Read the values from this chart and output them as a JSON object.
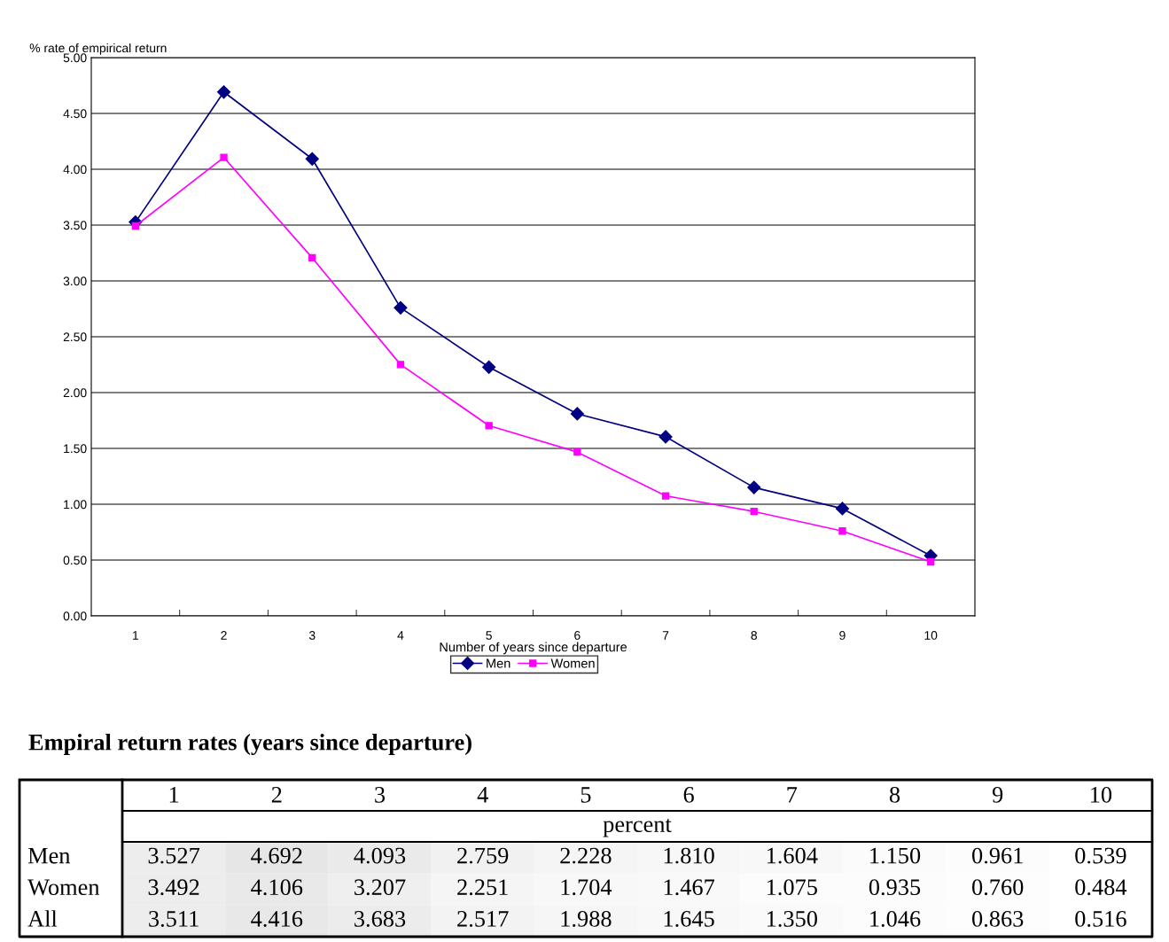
{
  "chart_data": [
    {
      "type": "line",
      "ylabel": "% rate of empirical return",
      "xlabel": "Number of years since departure",
      "categories": [
        "1",
        "2",
        "3",
        "4",
        "5",
        "6",
        "7",
        "8",
        "9",
        "10"
      ],
      "series": [
        {
          "name": "Men",
          "color": "#000080",
          "marker": "diamond",
          "values": [
            3.527,
            4.692,
            4.093,
            2.759,
            2.228,
            1.81,
            1.604,
            1.15,
            0.961,
            0.539
          ]
        },
        {
          "name": "Women",
          "color": "#ff00ff",
          "marker": "square",
          "values": [
            3.492,
            4.106,
            3.207,
            2.251,
            1.704,
            1.467,
            1.075,
            0.935,
            0.76,
            0.484
          ]
        }
      ],
      "ylim": [
        0,
        5
      ],
      "yticks": [
        {
          "value": 0,
          "label": "0.00"
        },
        {
          "value": 0.5,
          "label": "0.50"
        },
        {
          "value": 1,
          "label": "1.00"
        },
        {
          "value": 1.5,
          "label": "1.50"
        },
        {
          "value": 2,
          "label": "2.00"
        },
        {
          "value": 2.5,
          "label": "2.50"
        },
        {
          "value": 3,
          "label": "3.00"
        },
        {
          "value": 3.5,
          "label": "3.50"
        },
        {
          "value": 4,
          "label": "4.00"
        },
        {
          "value": 4.5,
          "label": "4.50"
        },
        {
          "value": 5,
          "label": "5.00"
        }
      ],
      "grid": "y",
      "legend": "bottom",
      "line_style": "solid"
    },
    {
      "type": "heatmap",
      "title": "Empiral return rates (years since departure)",
      "categories": [
        "1",
        "2",
        "3",
        "4",
        "5",
        "6",
        "7",
        "8",
        "9",
        "10"
      ],
      "y_categories": [
        "Men",
        "Women",
        "All"
      ],
      "cells": [
        [
          3.527,
          4.692,
          4.093,
          2.759,
          2.228,
          1.81,
          1.604,
          1.15,
          0.961,
          0.539
        ],
        [
          3.492,
          4.106,
          3.207,
          2.251,
          1.704,
          1.467,
          1.075,
          0.935,
          0.76,
          0.484
        ],
        [
          3.511,
          4.416,
          3.683,
          2.517,
          1.988,
          1.645,
          1.35,
          1.046,
          0.863,
          0.516
        ]
      ],
      "cell_labels": [
        [
          "3.527",
          "4.692",
          "4.093",
          "2.759",
          "2.228",
          "1.810",
          "1.604",
          "1.150",
          "0.961",
          "0.539"
        ],
        [
          "3.492",
          "4.106",
          "3.207",
          "2.251",
          "1.704",
          "1.467",
          "1.075",
          "0.935",
          "0.760",
          "0.484"
        ],
        [
          "3.511",
          "4.416",
          "3.683",
          "2.517",
          "1.988",
          "1.645",
          "1.350",
          "1.046",
          "0.863",
          "0.516"
        ]
      ],
      "annotations": [
        "percent"
      ]
    }
  ]
}
